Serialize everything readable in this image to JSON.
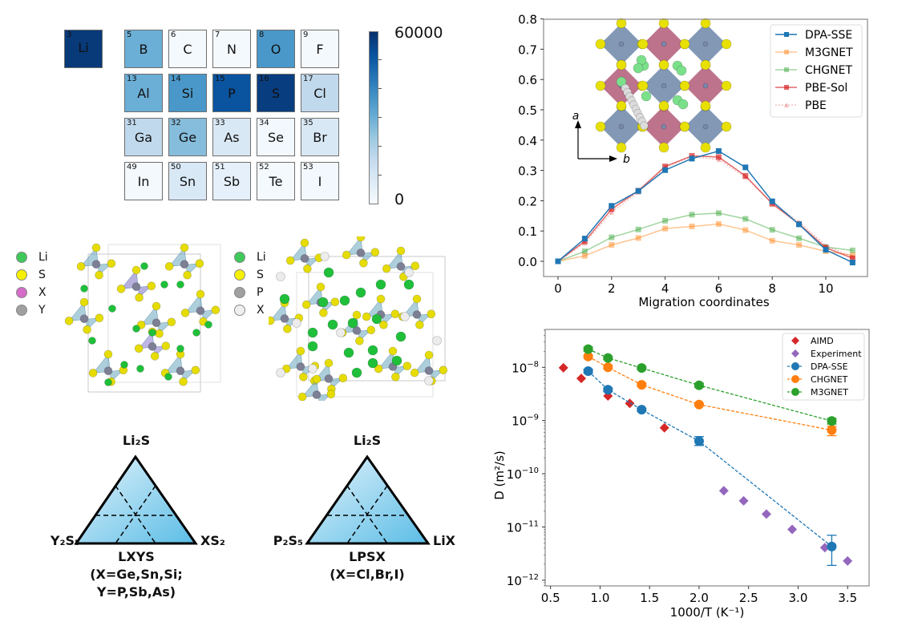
{
  "periodic_table": {
    "colorbar": {
      "max_label": "60000",
      "min_label": "0",
      "min": 0,
      "max": 60000,
      "colormap": "Blues"
    },
    "cells": [
      {
        "num": "3",
        "sym": "Li",
        "value": 58000
      },
      {
        "num": "5",
        "sym": "B",
        "value": 30000
      },
      {
        "num": "6",
        "sym": "C",
        "value": 1000
      },
      {
        "num": "7",
        "sym": "N",
        "value": 1000
      },
      {
        "num": "8",
        "sym": "O",
        "value": 36000
      },
      {
        "num": "9",
        "sym": "F",
        "value": 1000
      },
      {
        "num": "13",
        "sym": "Al",
        "value": 30000
      },
      {
        "num": "14",
        "sym": "Si",
        "value": 36000
      },
      {
        "num": "15",
        "sym": "P",
        "value": 52000
      },
      {
        "num": "16",
        "sym": "S",
        "value": 57000
      },
      {
        "num": "17",
        "sym": "Cl",
        "value": 16000
      },
      {
        "num": "31",
        "sym": "Ga",
        "value": 16000
      },
      {
        "num": "32",
        "sym": "Ge",
        "value": 26000
      },
      {
        "num": "33",
        "sym": "As",
        "value": 9000
      },
      {
        "num": "34",
        "sym": "Se",
        "value": 1500
      },
      {
        "num": "35",
        "sym": "Br",
        "value": 9000
      },
      {
        "num": "49",
        "sym": "In",
        "value": 1000
      },
      {
        "num": "50",
        "sym": "Sn",
        "value": 9000
      },
      {
        "num": "51",
        "sym": "Sb",
        "value": 5000
      },
      {
        "num": "52",
        "sym": "Te",
        "value": 1000
      },
      {
        "num": "53",
        "sym": "I",
        "value": 1500
      }
    ]
  },
  "structure_left": {
    "legend": [
      {
        "label": "Li",
        "color": "#3ec95a"
      },
      {
        "label": "S",
        "color": "#f4f000"
      },
      {
        "label": "X",
        "color": "#d46cc8"
      },
      {
        "label": "Y",
        "color": "#a0a0a0"
      }
    ]
  },
  "structure_right": {
    "legend": [
      {
        "label": "Li",
        "color": "#3ec95a"
      },
      {
        "label": "S",
        "color": "#f4f000"
      },
      {
        "label": "P",
        "color": "#a0a0a0"
      },
      {
        "label": "X",
        "color": "#efefef"
      }
    ]
  },
  "ternary_left": {
    "top": "Li₂S",
    "left": "Y₂S₅",
    "right": "XS₂",
    "caption": [
      "LXYS",
      "(X=Ge,Sn,Si;",
      "Y=P,Sb,As)"
    ]
  },
  "ternary_right": {
    "top": "Li₂S",
    "left": "P₂S₅",
    "right": "LiX",
    "caption": [
      "LPSX",
      "(X=Cl,Br,I)"
    ]
  },
  "inset": {
    "axis_a": "a",
    "axis_b": "b"
  },
  "chart_data": [
    {
      "type": "line",
      "title": "",
      "xlabel": "Migration coordinates",
      "ylabel": "",
      "xlim": [
        -0.7,
        11.5
      ],
      "ylim": [
        -0.05,
        0.8
      ],
      "xticks": [
        0,
        2,
        4,
        6,
        8,
        10
      ],
      "yticks": [
        0.0,
        0.1,
        0.2,
        0.3,
        0.4,
        0.5,
        0.6,
        0.7,
        0.8
      ],
      "ytick_labels": [
        "0.0",
        "0.1",
        "0.2",
        "0.3",
        "0.4",
        "0.5",
        "0.6",
        "0.7",
        "0.8"
      ],
      "legend_position": "top-right",
      "x": [
        0,
        1,
        2,
        3,
        4,
        5,
        6,
        7,
        8,
        9,
        10,
        11
      ],
      "series": [
        {
          "name": "DPA-SSE",
          "color": "#1f77b4",
          "marker": "square",
          "style": "solid",
          "alpha": 1.0,
          "values": [
            0,
            0.075,
            0.183,
            0.232,
            0.301,
            0.339,
            0.364,
            0.31,
            0.198,
            0.122,
            0.038,
            -0.004
          ]
        },
        {
          "name": "M3GNET",
          "color": "#ff7f0e",
          "marker": "square",
          "style": "solid",
          "alpha": 0.45,
          "values": [
            0,
            0.018,
            0.054,
            0.077,
            0.108,
            0.115,
            0.123,
            0.103,
            0.068,
            0.054,
            0.033,
            0.02
          ]
        },
        {
          "name": "CHGNET",
          "color": "#2ca02c",
          "marker": "square",
          "style": "solid",
          "alpha": 0.45,
          "values": [
            0,
            0.033,
            0.079,
            0.105,
            0.134,
            0.154,
            0.159,
            0.14,
            0.104,
            0.076,
            0.047,
            0.036
          ]
        },
        {
          "name": "PBE-Sol",
          "color": "#d62728",
          "marker": "square",
          "style": "solid",
          "alpha": 0.7,
          "values": [
            0,
            0.066,
            0.172,
            0.233,
            0.313,
            0.348,
            0.344,
            0.282,
            0.19,
            0.123,
            0.045,
            0.01
          ]
        },
        {
          "name": "PBE",
          "color": "#d62728",
          "marker": "triangle",
          "style": "dotted",
          "alpha": 0.3,
          "values": [
            0,
            0.06,
            0.162,
            0.228,
            0.31,
            0.345,
            0.336,
            0.278,
            0.192,
            0.13,
            0.052,
            0.015
          ]
        }
      ]
    },
    {
      "type": "scatter",
      "title": "",
      "xlabel": "1000/T (K⁻¹)",
      "ylabel": "D (m²/s)",
      "yscale": "log",
      "xlim": [
        0.48,
        3.7
      ],
      "ylim": [
        8e-13,
        5e-08
      ],
      "xticks": [
        0.5,
        1.0,
        1.5,
        2.0,
        2.5,
        3.0,
        3.5
      ],
      "xtick_labels": [
        "0.5",
        "1.0",
        "1.5",
        "2.0",
        "2.5",
        "3.0",
        "3.5"
      ],
      "yticks": [
        1e-08,
        1e-09,
        1e-10,
        1e-11,
        1e-12
      ],
      "ytick_exponents": [
        "−8",
        "−9",
        "−10",
        "−11",
        "−12"
      ],
      "legend_position": "top-right",
      "series": [
        {
          "name": "AIMD",
          "color": "#d62728",
          "marker": "diamond",
          "line": false,
          "x": [
            0.63,
            0.81,
            1.08,
            1.3,
            1.65
          ],
          "y": [
            9.8e-09,
            6.2e-09,
            2.9e-09,
            2.1e-09,
            7.3e-10
          ]
        },
        {
          "name": "Experiment",
          "color": "#9467bd",
          "marker": "diamond",
          "line": false,
          "x": [
            2.25,
            2.45,
            2.68,
            2.94,
            3.27,
            3.5
          ],
          "y": [
            4.8e-11,
            3.1e-11,
            1.75e-11,
            9e-12,
            4.1e-12,
            2.3e-12
          ]
        },
        {
          "name": "DPA-SSE",
          "color": "#1f77b4",
          "marker": "circle",
          "line": true,
          "x": [
            0.88,
            1.08,
            1.42,
            2.0,
            3.34
          ],
          "y": [
            8.5e-09,
            3.8e-09,
            1.6e-09,
            4.1e-10,
            4.3e-12
          ],
          "err_low": [
            7.8e-09,
            3.5e-09,
            1.5e-09,
            3.4e-10,
            1.9e-12
          ],
          "err_high": [
            9.2e-09,
            4.1e-09,
            1.7e-09,
            5e-10,
            7e-12
          ]
        },
        {
          "name": "CHGNET",
          "color": "#ff7f0e",
          "marker": "circle",
          "line": true,
          "x": [
            0.88,
            1.08,
            1.42,
            2.0,
            3.34
          ],
          "y": [
            1.6e-08,
            1e-08,
            4.7e-09,
            2e-09,
            6.6e-10
          ],
          "err_low": [
            1.5e-08,
            9.3e-09,
            4.4e-09,
            1.9e-09,
            5.2e-10
          ],
          "err_high": [
            1.7e-08,
            1.1e-08,
            5e-09,
            2.1e-09,
            7.8e-10
          ]
        },
        {
          "name": "M3GNET",
          "color": "#2ca02c",
          "marker": "circle",
          "line": true,
          "x": [
            0.88,
            1.08,
            1.42,
            2.0,
            3.34
          ],
          "y": [
            2.2e-08,
            1.5e-08,
            9.7e-09,
            4.6e-09,
            9.8e-10
          ],
          "err_low": [
            2e-08,
            1.4e-08,
            9.1e-09,
            4.2e-09,
            8.6e-10
          ],
          "err_high": [
            2.4e-08,
            1.6e-08,
            1.03e-08,
            5e-09,
            1.1e-09
          ]
        }
      ]
    }
  ]
}
